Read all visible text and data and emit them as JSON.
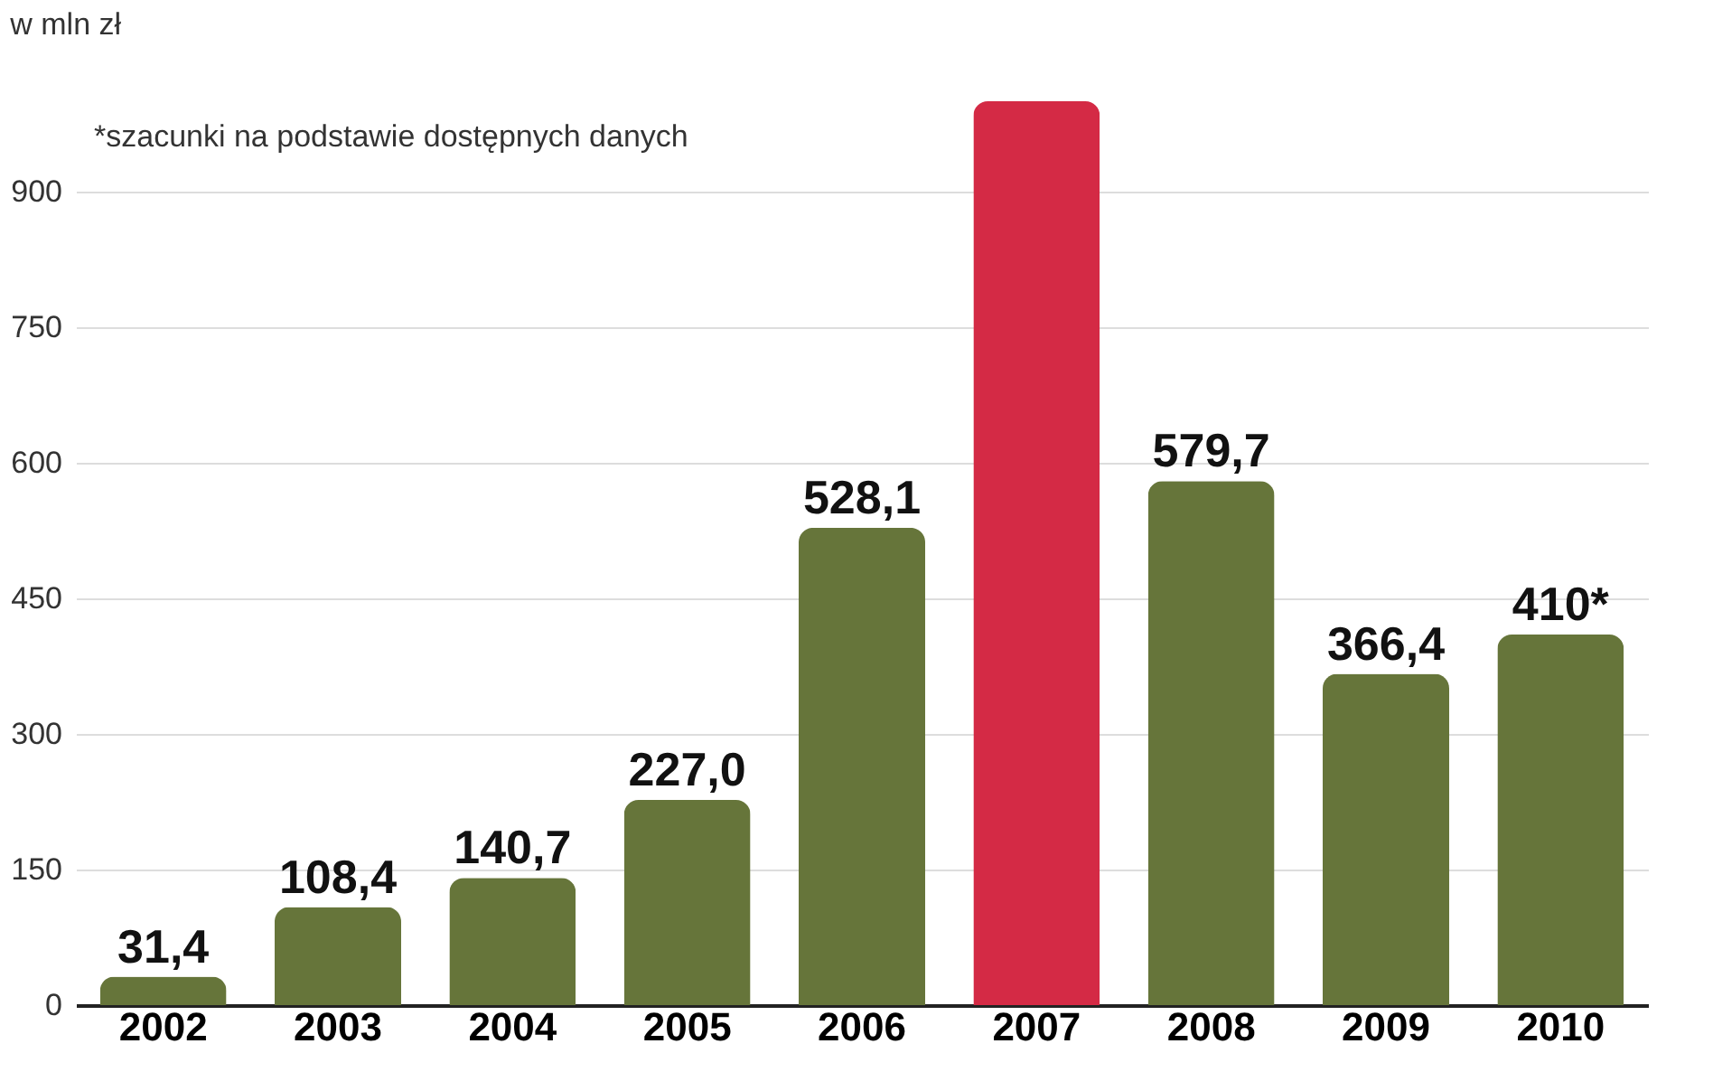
{
  "chart_data": {
    "type": "bar",
    "subtitle": "w mln zł",
    "categories": [
      "2002",
      "2003",
      "2004",
      "2005",
      "2006",
      "2007",
      "2008",
      "2009",
      "2010"
    ],
    "values": [
      31.4,
      108.4,
      140.7,
      227.0,
      528.1,
      1000,
      579.7,
      366.4,
      410
    ],
    "colors": [
      "#66753a",
      "#66753a",
      "#66753a",
      "#66753a",
      "#66753a",
      "#d42a45",
      "#66753a",
      "#66753a",
      "#66753a"
    ],
    "value_labels": [
      "31,4",
      "108,4",
      "140,7",
      "227,0",
      "528,1",
      null,
      "579,7",
      "366,4",
      "410*"
    ],
    "ylim": [
      0,
      1000
    ],
    "yticks": [
      0,
      150,
      300,
      450,
      600,
      750,
      900
    ],
    "grid": "y",
    "annotations": [
      "*szacunki na podstawie dostępnych danych"
    ]
  }
}
